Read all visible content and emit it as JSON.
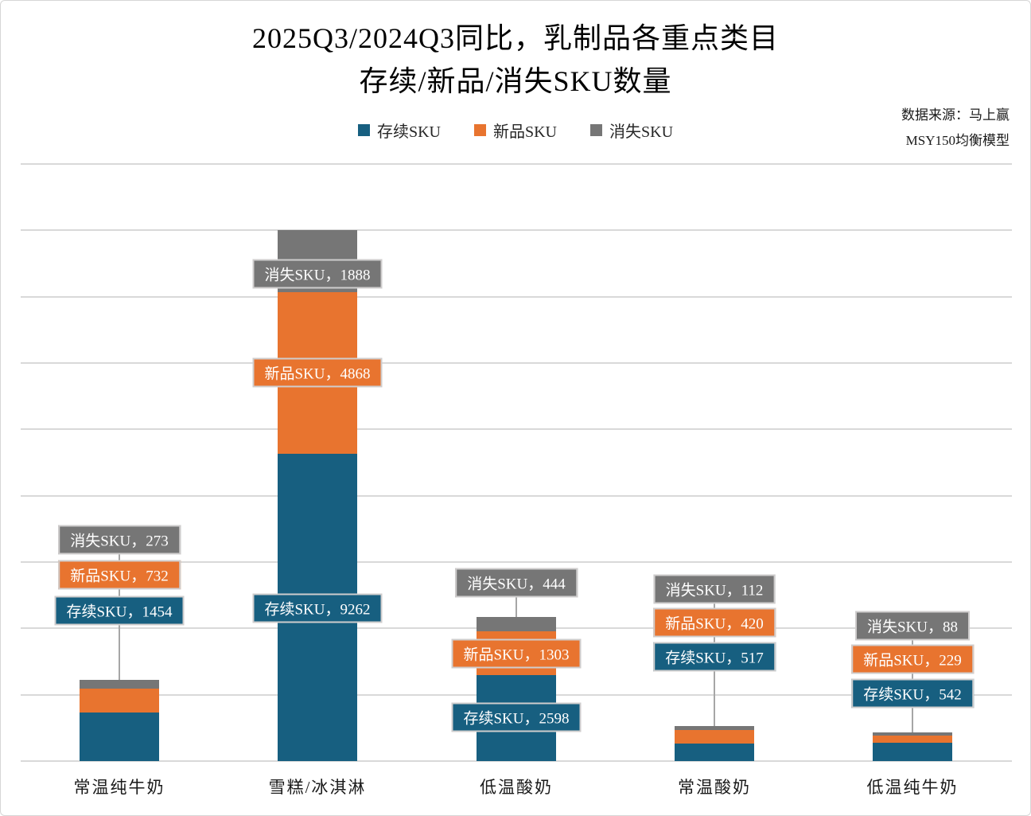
{
  "title": {
    "line1": "2025Q3/2024Q3同比，乳制品各重点类目",
    "line2": "存续/新品/消失SKU数量"
  },
  "source": {
    "line1": "数据来源：马上赢",
    "line2": "MSY150均衡模型"
  },
  "legend": [
    {
      "label": "存续SKU",
      "color": "#175F80"
    },
    {
      "label": "新品SKU",
      "color": "#E8742F"
    },
    {
      "label": "消失SKU",
      "color": "#767676"
    }
  ],
  "colors": {
    "existing": "#175F80",
    "new": "#E8742F",
    "disappeared": "#767676",
    "gridline": "#D9D9D9",
    "label_border": "#CFCDCD",
    "leader_line": "#A6A6A6",
    "background": "#FFFFFF"
  },
  "chart_data": {
    "type": "bar",
    "stacked": true,
    "title": "2025Q3/2024Q3同比，乳制品各重点类目 存续/新品/消失SKU数量",
    "categories": [
      "常温纯牛奶",
      "雪糕/冰淇淋",
      "低温酸奶",
      "常温酸奶",
      "低温纯牛奶"
    ],
    "series": [
      {
        "name": "存续SKU",
        "key": "existing",
        "color": "#175F80",
        "values": [
          1454,
          9262,
          2598,
          517,
          542
        ]
      },
      {
        "name": "新品SKU",
        "key": "new",
        "color": "#E8742F",
        "values": [
          732,
          4868,
          1303,
          420,
          229
        ]
      },
      {
        "name": "消失SKU",
        "key": "disappeared",
        "color": "#767676",
        "values": [
          273,
          1888,
          444,
          112,
          88
        ]
      }
    ],
    "totals": [
      2459,
      16018,
      4345,
      1049,
      859
    ],
    "xlabel": "",
    "ylabel": "",
    "ylim": [
      0,
      18000
    ],
    "gridline_interval": 2000,
    "grid": true,
    "y_axis_labels_visible": false,
    "legend_position": "top",
    "data_labels": true,
    "label_separator": "，"
  }
}
